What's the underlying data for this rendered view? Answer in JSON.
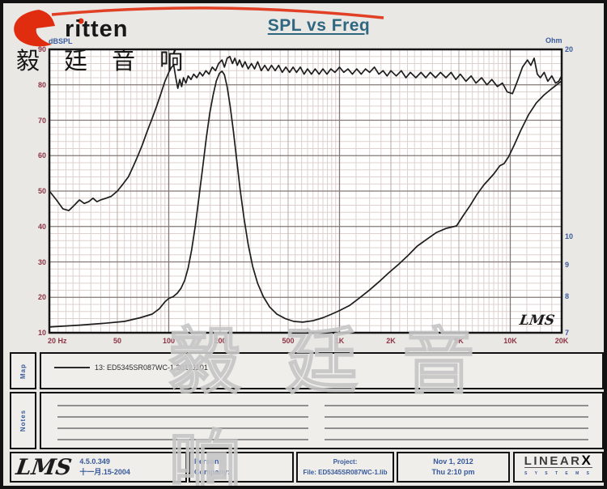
{
  "page": {
    "title": "SPL vs Freq"
  },
  "logo": {
    "brand": "ritten",
    "cjk": "毅 廷 音 响"
  },
  "watermark": "毅 廷 音 响",
  "chart_data": {
    "type": "line",
    "title": "SPL vs Freq",
    "x_axis": {
      "scale": "log",
      "min": 20,
      "max": 20000,
      "unit": "Hz",
      "ticks": [
        {
          "f": 20,
          "label": "20 Hz",
          "align": "left"
        },
        {
          "f": 50,
          "label": "50"
        },
        {
          "f": 100,
          "label": "100"
        },
        {
          "f": 200,
          "label": "200"
        },
        {
          "f": 500,
          "label": "500"
        },
        {
          "f": 1000,
          "label": "1K"
        },
        {
          "f": 2000,
          "label": "2K"
        },
        {
          "f": 5000,
          "label": "5K"
        },
        {
          "f": 10000,
          "label": "10K"
        },
        {
          "f": 20000,
          "label": "20K"
        }
      ]
    },
    "y_left": {
      "label": "dBSPL",
      "min": 10,
      "max": 90,
      "ticks": [
        90,
        80,
        70,
        60,
        50,
        40,
        30,
        20,
        10
      ]
    },
    "y_right": {
      "label": "Ohm",
      "scale": "log",
      "min": 7,
      "max": 20,
      "ticks": [
        20,
        10,
        9,
        8,
        7
      ]
    },
    "inplot_logo": "LMS",
    "series": [
      {
        "name": "SPL",
        "axis": "left",
        "points": [
          [
            20,
            50
          ],
          [
            22,
            47.5
          ],
          [
            24,
            45
          ],
          [
            26,
            44.5
          ],
          [
            28,
            46
          ],
          [
            30,
            47.5
          ],
          [
            32,
            46.5
          ],
          [
            34,
            47
          ],
          [
            36,
            48
          ],
          [
            38,
            47
          ],
          [
            40,
            47.5
          ],
          [
            43,
            48
          ],
          [
            46,
            48.5
          ],
          [
            50,
            50
          ],
          [
            54,
            52
          ],
          [
            58,
            54
          ],
          [
            62,
            57
          ],
          [
            66,
            60
          ],
          [
            70,
            63
          ],
          [
            75,
            67
          ],
          [
            80,
            70.5
          ],
          [
            85,
            74
          ],
          [
            90,
            77.5
          ],
          [
            95,
            81
          ],
          [
            100,
            83.5
          ],
          [
            104,
            85
          ],
          [
            107,
            85.5
          ],
          [
            110,
            82
          ],
          [
            113,
            79
          ],
          [
            116,
            81.5
          ],
          [
            119,
            79.5
          ],
          [
            122,
            82
          ],
          [
            126,
            80.5
          ],
          [
            130,
            82.5
          ],
          [
            135,
            81.5
          ],
          [
            140,
            83
          ],
          [
            146,
            82
          ],
          [
            152,
            83.5
          ],
          [
            158,
            82.5
          ],
          [
            165,
            84
          ],
          [
            172,
            83
          ],
          [
            180,
            85
          ],
          [
            188,
            84
          ],
          [
            196,
            86
          ],
          [
            205,
            87
          ],
          [
            212,
            85
          ],
          [
            220,
            87.5
          ],
          [
            228,
            88
          ],
          [
            236,
            86
          ],
          [
            244,
            87.5
          ],
          [
            252,
            85.5
          ],
          [
            260,
            87
          ],
          [
            270,
            85
          ],
          [
            280,
            86.5
          ],
          [
            292,
            84.5
          ],
          [
            305,
            86
          ],
          [
            318,
            84.5
          ],
          [
            332,
            86.5
          ],
          [
            348,
            84
          ],
          [
            365,
            85.5
          ],
          [
            382,
            84
          ],
          [
            400,
            85.5
          ],
          [
            420,
            84
          ],
          [
            440,
            85.5
          ],
          [
            462,
            83.5
          ],
          [
            485,
            85
          ],
          [
            510,
            83.5
          ],
          [
            535,
            85
          ],
          [
            560,
            83.5
          ],
          [
            590,
            85
          ],
          [
            620,
            83
          ],
          [
            650,
            84.5
          ],
          [
            685,
            83
          ],
          [
            720,
            84.5
          ],
          [
            760,
            83
          ],
          [
            800,
            84.5
          ],
          [
            845,
            83
          ],
          [
            890,
            84.5
          ],
          [
            940,
            83.5
          ],
          [
            1000,
            85
          ],
          [
            1060,
            83.5
          ],
          [
            1120,
            84.5
          ],
          [
            1190,
            83
          ],
          [
            1260,
            84.5
          ],
          [
            1340,
            83
          ],
          [
            1420,
            84.5
          ],
          [
            1500,
            83.5
          ],
          [
            1600,
            85
          ],
          [
            1700,
            83
          ],
          [
            1800,
            84
          ],
          [
            1900,
            82.5
          ],
          [
            2000,
            84
          ],
          [
            2150,
            82.5
          ],
          [
            2300,
            84
          ],
          [
            2450,
            82
          ],
          [
            2600,
            83.5
          ],
          [
            2800,
            82
          ],
          [
            3000,
            83.5
          ],
          [
            3200,
            82
          ],
          [
            3400,
            83.5
          ],
          [
            3650,
            82
          ],
          [
            3900,
            83.5
          ],
          [
            4200,
            82
          ],
          [
            4500,
            83.5
          ],
          [
            4800,
            81.5
          ],
          [
            5100,
            83
          ],
          [
            5500,
            81
          ],
          [
            5900,
            82.5
          ],
          [
            6300,
            80.5
          ],
          [
            6800,
            82
          ],
          [
            7300,
            80
          ],
          [
            7800,
            81.5
          ],
          [
            8400,
            79.5
          ],
          [
            9000,
            80.5
          ],
          [
            9600,
            78
          ],
          [
            10300,
            77.5
          ],
          [
            11000,
            81
          ],
          [
            11800,
            85
          ],
          [
            12600,
            87
          ],
          [
            13200,
            85.5
          ],
          [
            13800,
            87.5
          ],
          [
            14400,
            83
          ],
          [
            15000,
            82
          ],
          [
            15800,
            83.5
          ],
          [
            16600,
            81
          ],
          [
            17500,
            82.5
          ],
          [
            18400,
            80.5
          ],
          [
            19200,
            81
          ],
          [
            20000,
            82.5
          ]
        ]
      },
      {
        "name": "Impedance",
        "axis": "right",
        "points": [
          [
            20,
            7.15
          ],
          [
            30,
            7.2
          ],
          [
            42,
            7.25
          ],
          [
            55,
            7.3
          ],
          [
            68,
            7.4
          ],
          [
            80,
            7.5
          ],
          [
            88,
            7.65
          ],
          [
            95,
            7.85
          ],
          [
            100,
            7.95
          ],
          [
            106,
            8.0
          ],
          [
            112,
            8.1
          ],
          [
            118,
            8.25
          ],
          [
            124,
            8.5
          ],
          [
            130,
            8.9
          ],
          [
            136,
            9.5
          ],
          [
            143,
            10.4
          ],
          [
            150,
            11.5
          ],
          [
            158,
            12.9
          ],
          [
            166,
            14.4
          ],
          [
            174,
            15.8
          ],
          [
            182,
            16.9
          ],
          [
            190,
            17.8
          ],
          [
            198,
            18.3
          ],
          [
            205,
            18.45
          ],
          [
            212,
            18.2
          ],
          [
            220,
            17.4
          ],
          [
            229,
            16.2
          ],
          [
            239,
            14.8
          ],
          [
            250,
            13.3
          ],
          [
            262,
            11.9
          ],
          [
            276,
            10.7
          ],
          [
            292,
            9.7
          ],
          [
            310,
            8.95
          ],
          [
            332,
            8.4
          ],
          [
            358,
            8.0
          ],
          [
            390,
            7.7
          ],
          [
            430,
            7.5
          ],
          [
            480,
            7.38
          ],
          [
            540,
            7.3
          ],
          [
            610,
            7.28
          ],
          [
            700,
            7.32
          ],
          [
            800,
            7.4
          ],
          [
            900,
            7.5
          ],
          [
            1000,
            7.6
          ],
          [
            1150,
            7.75
          ],
          [
            1300,
            7.95
          ],
          [
            1500,
            8.2
          ],
          [
            1700,
            8.45
          ],
          [
            1950,
            8.75
          ],
          [
            2200,
            9.0
          ],
          [
            2500,
            9.3
          ],
          [
            2850,
            9.65
          ],
          [
            3250,
            9.9
          ],
          [
            3700,
            10.15
          ],
          [
            4200,
            10.3
          ],
          [
            4845,
            10.4
          ],
          [
            5300,
            10.8
          ],
          [
            5800,
            11.2
          ],
          [
            6400,
            11.7
          ],
          [
            7000,
            12.1
          ],
          [
            8000,
            12.6
          ],
          [
            8700,
            13.0
          ],
          [
            9200,
            13.1
          ],
          [
            9800,
            13.45
          ],
          [
            10500,
            14.0
          ],
          [
            11500,
            14.8
          ],
          [
            12800,
            15.7
          ],
          [
            14200,
            16.4
          ],
          [
            15800,
            16.9
          ],
          [
            17500,
            17.3
          ],
          [
            20000,
            17.8
          ]
        ]
      }
    ]
  },
  "legend": {
    "row_label": "Map",
    "entry": "13: ED5345SR087WC-1 20121101"
  },
  "notes": {
    "row_label": "Notes"
  },
  "footer": {
    "lms_logo": "LMS",
    "version": "4.5.0.349",
    "version_date": "十一月.15-2004",
    "person_label": "Person:",
    "company_label": "Company:",
    "project_label": "Project:",
    "file_label": "File: ED5345SR087WC-1.lib",
    "date": "Nov 1, 2012",
    "time": "Thu 2:10 pm",
    "linearx_name": "LINEAR",
    "linearx_x": "X",
    "linearx_sub": "S Y S T E M S"
  }
}
